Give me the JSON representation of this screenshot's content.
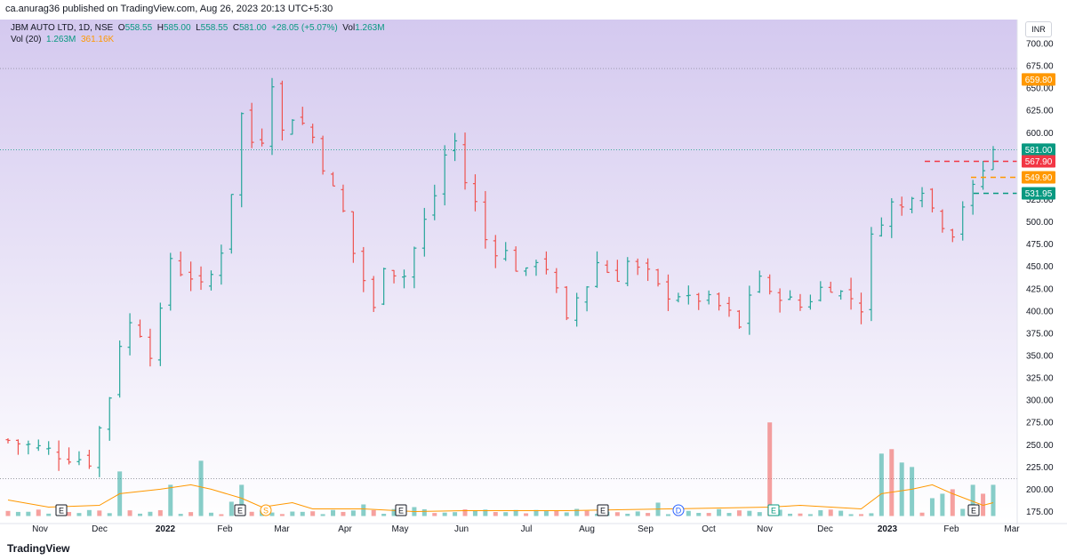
{
  "header": {
    "published_line": "ca.anurag36 published on TradingView.com, Aug 26, 2023 20:13 UTC+5:30"
  },
  "legend": {
    "symbol": "JBM AUTO LTD, 1D, NSE",
    "open_label": "O",
    "open": "558.55",
    "high_label": "H",
    "high": "585.00",
    "low_label": "L",
    "low": "558.55",
    "close_label": "C",
    "close": "581.00",
    "change": "+28.05 (+5.07%)",
    "vol_label": "Vol",
    "vol": "1.263M",
    "vol20_label": "Vol (20)",
    "vol20_value": "1.263M",
    "vol20_ma": "361.16K"
  },
  "currency": "INR",
  "brand": "TradingView",
  "colors": {
    "up": "#26a69a",
    "down": "#ef5350",
    "volume_ma": "#ff9800",
    "bg_top": "#d4c9ef",
    "bg_bottom": "#ffffff"
  },
  "chart_data": {
    "type": "ohlc",
    "y_ticks": [
      "700.00",
      "675.00",
      "650.00",
      "625.00",
      "600.00",
      "575.00",
      "550.00",
      "525.00",
      "500.00",
      "475.00",
      "450.00",
      "425.00",
      "400.00",
      "375.00",
      "350.00",
      "325.00",
      "300.00",
      "275.00",
      "250.00",
      "225.00",
      "200.00",
      "175.00"
    ],
    "ylim": [
      160,
      712
    ],
    "x_ticks": [
      "Nov",
      "Dec",
      "2022",
      "Feb",
      "Mar",
      "Apr",
      "May",
      "Jun",
      "Jul",
      "Aug",
      "Sep",
      "Oct",
      "Nov",
      "Dec",
      "2023",
      "Feb",
      "Mar"
    ],
    "price_labels": [
      {
        "value": "659.80",
        "color": "#ff9800"
      },
      {
        "value": "581.00",
        "color": "#089981"
      },
      {
        "value": "567.90",
        "color": "#f23645"
      },
      {
        "value": "549.90",
        "color": "#ff9800"
      },
      {
        "value": "531.95",
        "color": "#089981"
      }
    ],
    "event_markers": [
      {
        "label": "E",
        "kind": "earnings",
        "color": "#131722"
      },
      {
        "label": "E",
        "kind": "earnings",
        "color": "#131722"
      },
      {
        "label": "S",
        "kind": "split",
        "color": "#ff9800"
      },
      {
        "label": "E",
        "kind": "earnings",
        "color": "#131722"
      },
      {
        "label": "E",
        "kind": "earnings",
        "color": "#131722"
      },
      {
        "label": "D",
        "kind": "dividend",
        "color": "#2962ff"
      },
      {
        "label": "E",
        "kind": "earnings",
        "color": "#089981"
      },
      {
        "label": "E",
        "kind": "earnings",
        "color": "#131722"
      }
    ],
    "close_path": [
      [
        0,
        255
      ],
      [
        5,
        240
      ],
      [
        8,
        232
      ],
      [
        9,
        268
      ],
      [
        10,
        305
      ],
      [
        11,
        365
      ],
      [
        12,
        385
      ],
      [
        13,
        378
      ],
      [
        14,
        355
      ],
      [
        15,
        395
      ],
      [
        16,
        460
      ],
      [
        17,
        445
      ],
      [
        18,
        440
      ],
      [
        19,
        425
      ],
      [
        20,
        440
      ],
      [
        21,
        470
      ],
      [
        22,
        535
      ],
      [
        23,
        620
      ],
      [
        24,
        590
      ],
      [
        25,
        595
      ],
      [
        26,
        660
      ],
      [
        27,
        600
      ],
      [
        28,
        620
      ],
      [
        29,
        610
      ],
      [
        30,
        595
      ],
      [
        31,
        565
      ],
      [
        32,
        535
      ],
      [
        33,
        510
      ],
      [
        34,
        465
      ],
      [
        35,
        435
      ],
      [
        36,
        400
      ],
      [
        37,
        455
      ],
      [
        38,
        445
      ],
      [
        39,
        440
      ],
      [
        40,
        470
      ],
      [
        41,
        500
      ],
      [
        42,
        530
      ],
      [
        43,
        575
      ],
      [
        44,
        590
      ],
      [
        45,
        545
      ],
      [
        46,
        520
      ],
      [
        47,
        480
      ],
      [
        48,
        470
      ],
      [
        49,
        465
      ],
      [
        50,
        450
      ],
      [
        51,
        440
      ],
      [
        52,
        460
      ],
      [
        53,
        450
      ],
      [
        54,
        420
      ],
      [
        55,
        385
      ],
      [
        56,
        415
      ],
      [
        57,
        430
      ],
      [
        58,
        455
      ],
      [
        59,
        445
      ],
      [
        60,
        440
      ],
      [
        61,
        455
      ],
      [
        62,
        445
      ],
      [
        63,
        440
      ],
      [
        64,
        425
      ],
      [
        65,
        420
      ],
      [
        66,
        420
      ],
      [
        67,
        410
      ],
      [
        68,
        415
      ],
      [
        69,
        410
      ],
      [
        70,
        405
      ],
      [
        71,
        395
      ],
      [
        72,
        380
      ],
      [
        73,
        420
      ],
      [
        74,
        440
      ],
      [
        75,
        415
      ],
      [
        76,
        420
      ],
      [
        77,
        410
      ],
      [
        78,
        405
      ],
      [
        79,
        415
      ],
      [
        80,
        425
      ],
      [
        81,
        430
      ],
      [
        82,
        420
      ],
      [
        83,
        415
      ],
      [
        84,
        405
      ],
      [
        85,
        480
      ],
      [
        86,
        505
      ],
      [
        87,
        520
      ],
      [
        88,
        515
      ],
      [
        89,
        535
      ],
      [
        90,
        540
      ],
      [
        91,
        515
      ],
      [
        92,
        500
      ],
      [
        93,
        490
      ],
      [
        94,
        520
      ],
      [
        95,
        535
      ],
      [
        96,
        558
      ],
      [
        97,
        581
      ]
    ],
    "volume_spikes": [
      [
        11,
        220
      ],
      [
        16,
        205
      ],
      [
        19,
        232
      ],
      [
        22,
        186
      ],
      [
        23,
        205
      ],
      [
        35,
        183
      ],
      [
        40,
        180
      ],
      [
        56,
        178
      ],
      [
        64,
        185
      ],
      [
        75,
        275
      ],
      [
        86,
        240
      ],
      [
        87,
        245
      ],
      [
        88,
        230
      ],
      [
        89,
        225
      ],
      [
        91,
        190
      ],
      [
        92,
        195
      ],
      [
        93,
        200
      ],
      [
        95,
        205
      ],
      [
        96,
        195
      ],
      [
        97,
        205
      ]
    ],
    "volume_ma_path": [
      [
        0,
        188
      ],
      [
        4,
        180
      ],
      [
        9,
        182
      ],
      [
        11,
        195
      ],
      [
        15,
        200
      ],
      [
        18,
        205
      ],
      [
        20,
        200
      ],
      [
        23,
        190
      ],
      [
        25,
        180
      ],
      [
        28,
        185
      ],
      [
        30,
        178
      ],
      [
        35,
        178
      ],
      [
        40,
        175
      ],
      [
        45,
        176
      ],
      [
        55,
        176
      ],
      [
        65,
        178
      ],
      [
        75,
        180
      ],
      [
        78,
        182
      ],
      [
        84,
        178
      ],
      [
        86,
        195
      ],
      [
        89,
        200
      ],
      [
        91,
        205
      ],
      [
        93,
        195
      ],
      [
        96,
        182
      ],
      [
        97,
        185
      ]
    ]
  }
}
